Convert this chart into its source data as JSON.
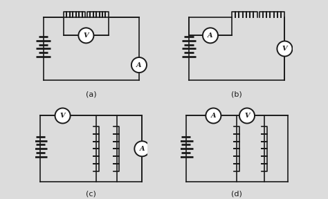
{
  "bg_color": "#dcdcdc",
  "line_color": "#1a1a1a",
  "figsize": [
    4.74,
    2.88
  ],
  "dpi": 100,
  "labels": [
    "(a)",
    "(b)",
    "(c)",
    "(d)"
  ]
}
